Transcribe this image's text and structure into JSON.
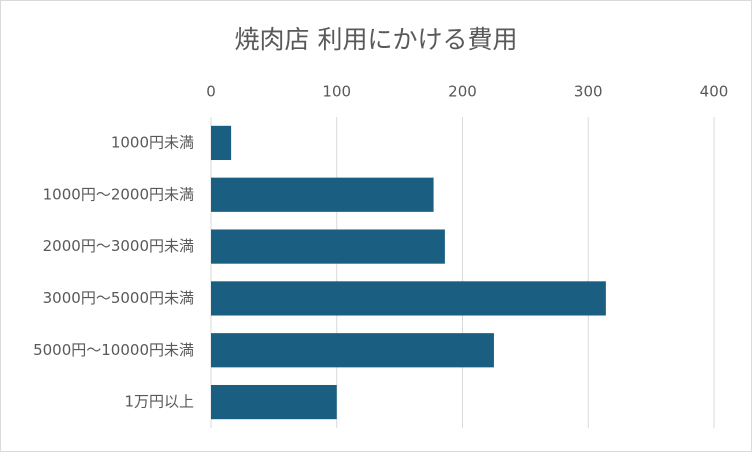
{
  "chart_data": {
    "type": "bar",
    "orientation": "horizontal",
    "title": "焼肉店 利用にかける費用",
    "categories": [
      "1000円未満",
      "1000円～2000円未満",
      "2000円～3000円未満",
      "3000円～5000円未満",
      "5000円～10000円未満",
      "1万円以上"
    ],
    "values": [
      16,
      177,
      186,
      314,
      225,
      100
    ],
    "color": "#1a5f82",
    "xlim": [
      0,
      400
    ],
    "xticks": [
      0,
      100,
      200,
      300,
      400
    ],
    "grid": true
  }
}
